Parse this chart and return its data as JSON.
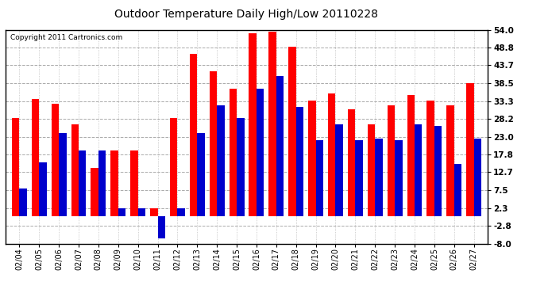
{
  "title": "Outdoor Temperature Daily High/Low 20110228",
  "copyright": "Copyright 2011 Cartronics.com",
  "dates": [
    "02/04",
    "02/05",
    "02/06",
    "02/07",
    "02/08",
    "02/09",
    "02/10",
    "02/11",
    "02/12",
    "02/13",
    "02/14",
    "02/15",
    "02/16",
    "02/17",
    "02/18",
    "02/19",
    "02/20",
    "02/21",
    "02/22",
    "02/23",
    "02/24",
    "02/25",
    "02/26",
    "02/27"
  ],
  "highs": [
    28.5,
    34.0,
    32.5,
    26.5,
    14.0,
    19.0,
    19.0,
    2.3,
    28.5,
    47.0,
    42.0,
    37.0,
    53.0,
    53.5,
    49.0,
    33.5,
    35.5,
    31.0,
    26.5,
    32.0,
    35.0,
    33.5,
    32.0,
    38.5
  ],
  "lows": [
    8.0,
    15.5,
    24.0,
    19.0,
    19.0,
    2.3,
    2.3,
    -6.5,
    2.3,
    24.0,
    32.0,
    28.5,
    37.0,
    40.5,
    31.5,
    22.0,
    26.5,
    22.0,
    22.5,
    22.0,
    26.5,
    26.0,
    15.0,
    22.5
  ],
  "high_color": "#ff0000",
  "low_color": "#0000cc",
  "background_color": "#ffffff",
  "plot_background": "#ffffff",
  "grid_color": "#aaaaaa",
  "yticks": [
    54.0,
    48.8,
    43.7,
    38.5,
    33.3,
    28.2,
    23.0,
    17.8,
    12.7,
    7.5,
    2.3,
    -2.8,
    -8.0
  ],
  "ylim": [
    -8.0,
    54.0
  ],
  "bar_width": 0.38
}
